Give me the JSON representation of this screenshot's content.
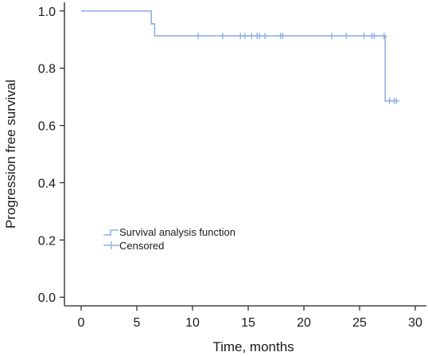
{
  "chart_data": {
    "type": "line",
    "title": "",
    "xlabel": "Time, months",
    "ylabel": "Progression free survival",
    "xlim": [
      -1.5,
      31
    ],
    "ylim": [
      -0.03,
      1.03
    ],
    "x_ticks": [
      0,
      5,
      10,
      15,
      20,
      25,
      30
    ],
    "y_ticks": [
      0.0,
      0.2,
      0.4,
      0.6,
      0.8,
      1.0
    ],
    "y_tick_labels": [
      "0.0",
      "0.2",
      "0.4",
      "0.6",
      "0.8",
      "1.0"
    ],
    "grid": false,
    "legend_position": "lower-left",
    "series": [
      {
        "name": "Survival analysis function",
        "style": "step",
        "color": "#8fb1e3",
        "x": [
          0,
          6.3,
          6.6,
          27.3,
          28.2
        ],
        "y": [
          1.0,
          0.955,
          0.913,
          0.686,
          0.686
        ]
      },
      {
        "name": "Censored",
        "style": "marker-plus",
        "color": "#8fb1e3",
        "x": [
          10.5,
          12.7,
          14.3,
          14.7,
          15.3,
          15.8,
          16.0,
          16.5,
          17.9,
          18.1,
          22.5,
          23.8,
          25.4,
          26.1,
          26.3,
          27.2,
          27.7,
          28.1,
          28.3
        ],
        "y": [
          0.913,
          0.913,
          0.913,
          0.913,
          0.913,
          0.913,
          0.913,
          0.913,
          0.913,
          0.913,
          0.913,
          0.913,
          0.913,
          0.913,
          0.913,
          0.913,
          0.686,
          0.686,
          0.686
        ]
      }
    ]
  }
}
